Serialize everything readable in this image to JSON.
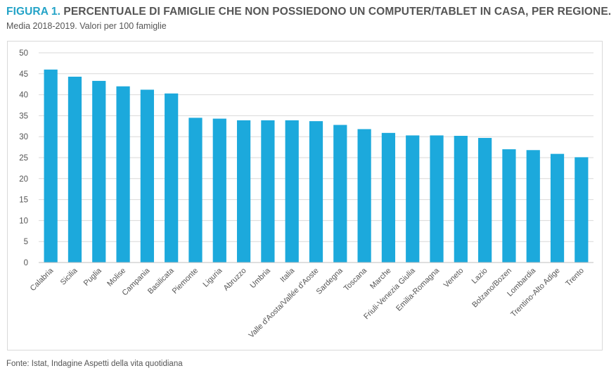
{
  "header": {
    "figure_label": "FIGURA 1.",
    "title": "PERCENTUALE DI FAMIGLIE CHE NON POSSIEDONO UN COMPUTER/TABLET IN CASA, PER REGIONE.",
    "subtitle": "Media 2018-2019. Valori per 100 famiglie"
  },
  "footer": {
    "source": "Fonte: Istat, Indagine Aspetti della vita quotidiana"
  },
  "colors": {
    "bar": "#1ca9dc",
    "accent": "#23a3c7",
    "grid": "#d9d9d9",
    "text": "#555555"
  },
  "chart_data": {
    "type": "bar",
    "title": "",
    "xlabel": "",
    "ylabel": "",
    "ylim": [
      0,
      50
    ],
    "yticks": [
      0,
      5,
      10,
      15,
      20,
      25,
      30,
      35,
      40,
      45,
      50
    ],
    "grid": true,
    "legend": "none",
    "categories": [
      "Calabria",
      "Sicilia",
      "Puglia",
      "Molise",
      "Campania",
      "Basilicata",
      "Piemonte",
      "Liguria",
      "Abruzzo",
      "Umbria",
      "Italia",
      "Valle d'Aosta/Vallée d'Aoste",
      "Sardegna",
      "Toscana",
      "Marche",
      "Friuli-Venezia Giulia",
      "Emilia-Romagna",
      "Veneto",
      "Lazio",
      "Bolzano/Bozen",
      "Lombardia",
      "Trentino-Alto Adige",
      "Trento"
    ],
    "values": [
      46.0,
      44.3,
      43.3,
      42.0,
      41.2,
      40.3,
      34.5,
      34.3,
      33.9,
      33.9,
      33.9,
      33.7,
      32.8,
      31.8,
      30.9,
      30.3,
      30.3,
      30.2,
      29.7,
      27.0,
      26.8,
      25.9,
      25.1
    ]
  }
}
